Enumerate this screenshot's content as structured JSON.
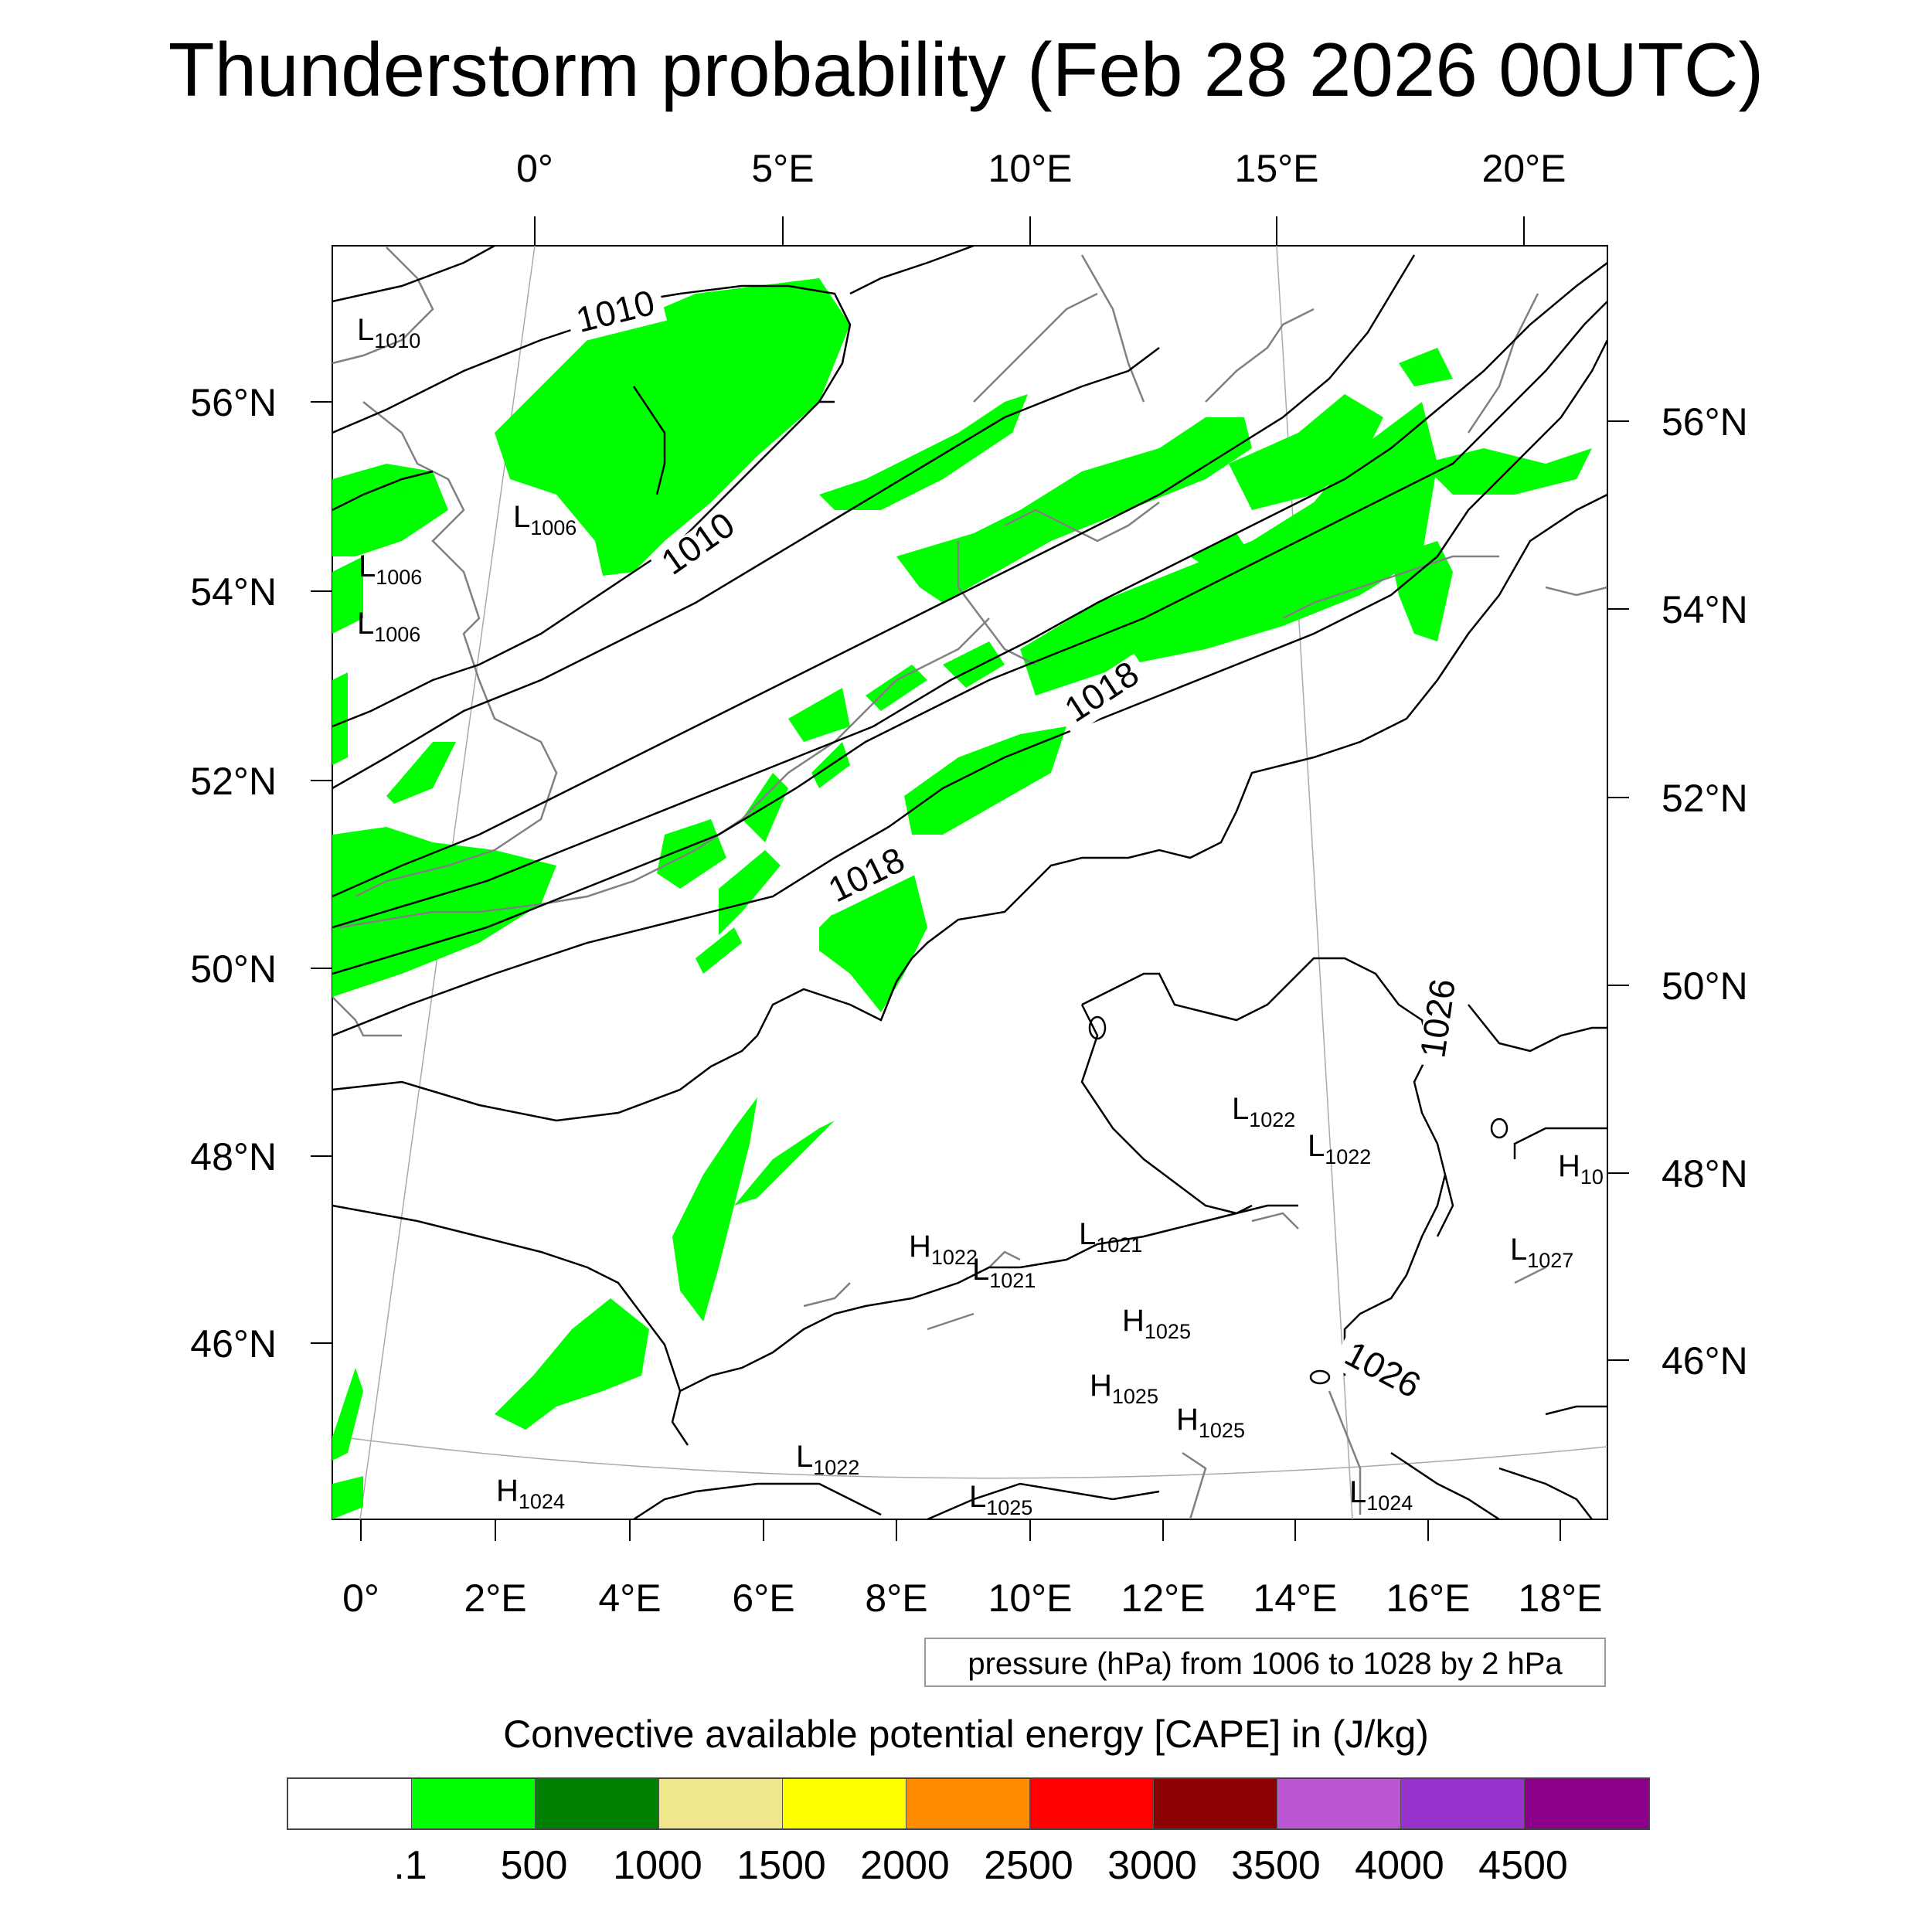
{
  "title": "Thunderstorm probability (Feb 28 2026 00UTC)",
  "map": {
    "top_lon_labels": [
      "0°",
      "5°E",
      "10°E",
      "15°E",
      "20°E"
    ],
    "bottom_lon_labels": [
      "0°",
      "2°E",
      "4°E",
      "6°E",
      "8°E",
      "10°E",
      "12°E",
      "14°E",
      "16°E",
      "18°E"
    ],
    "left_lat_labels": [
      "56°N",
      "54°N",
      "52°N",
      "50°N",
      "48°N",
      "46°N"
    ],
    "right_lat_labels": [
      "56°N",
      "54°N",
      "52°N",
      "50°N",
      "48°N",
      "46°N"
    ],
    "isobar_labels": [
      "1010",
      "1010",
      "1018",
      "1018",
      "1026",
      "1026"
    ],
    "pressure_centers": [
      {
        "letter": "L",
        "value": "1010"
      },
      {
        "letter": "L",
        "value": "1006"
      },
      {
        "letter": "L",
        "value": "1006"
      },
      {
        "letter": "L",
        "value": "1006"
      },
      {
        "letter": "L",
        "value": "1022"
      },
      {
        "letter": "L",
        "value": "1022"
      },
      {
        "letter": "H",
        "value": "10"
      },
      {
        "letter": "H",
        "value": "1022"
      },
      {
        "letter": "L",
        "value": "1021"
      },
      {
        "letter": "L",
        "value": "1021"
      },
      {
        "letter": "L",
        "value": "1027"
      },
      {
        "letter": "H",
        "value": "1025"
      },
      {
        "letter": "H",
        "value": "1025"
      },
      {
        "letter": "H",
        "value": "1025"
      },
      {
        "letter": "L",
        "value": "1022"
      },
      {
        "letter": "H",
        "value": "1024"
      },
      {
        "letter": "L",
        "value": "1025"
      },
      {
        "letter": "L",
        "value": "1024"
      }
    ]
  },
  "pressure_note": "pressure (hPa) from 1006 to 1028 by 2 hPa",
  "cape": {
    "title": "Convective available potential energy [CAPE] in (J/kg)",
    "colors": [
      "#ffffff",
      "#00ff00",
      "#008000",
      "#f0e68c",
      "#ffff00",
      "#ff8c00",
      "#ff0000",
      "#8b0000",
      "#ba55d3",
      "#9932cc",
      "#8b008b"
    ],
    "labels": [
      ".1",
      "500",
      "1000",
      "1500",
      "2000",
      "2500",
      "3000",
      "3500",
      "4000",
      "4500"
    ]
  },
  "colors": {
    "cape_shading": "#00ff00",
    "coastline": "#808080",
    "isobar": "#000000"
  }
}
